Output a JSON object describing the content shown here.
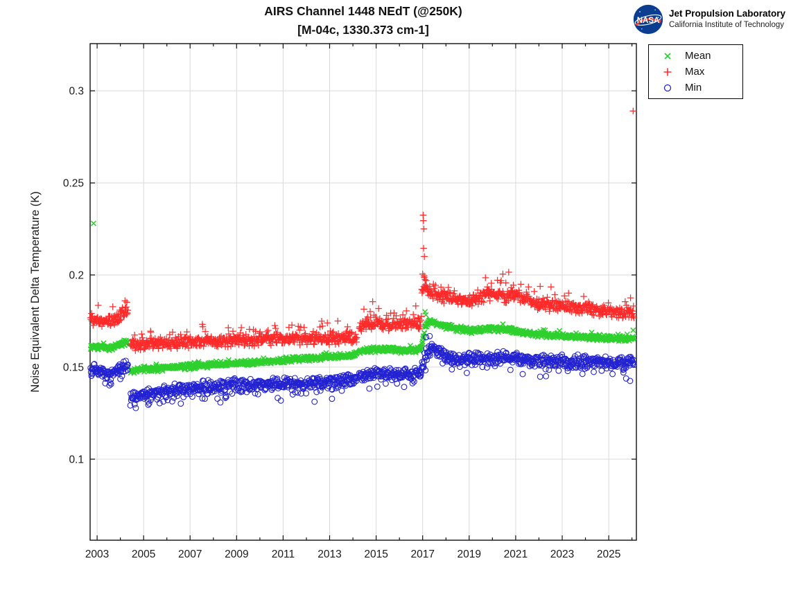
{
  "logo": {
    "agency": "NASA",
    "org": "Jet Propulsion Laboratory",
    "inst": "California Institute of Technology"
  },
  "legend": {
    "items": [
      {
        "label": "Mean",
        "marker": "x",
        "color": "#2ed02e"
      },
      {
        "label": "Max",
        "marker": "plus",
        "color": "#ff2a2a"
      },
      {
        "label": "Min",
        "marker": "circle",
        "color": "#2222d2"
      }
    ]
  },
  "chart_data": {
    "type": "scatter",
    "title": "AIRS Channel 1448 NEdT (@250K)",
    "subtitle": "[M-04c, 1330.373 cm-1]",
    "xlabel": "",
    "ylabel": "Noise Equivalent Delta Temperature (K)",
    "xlim": [
      2002.7,
      2026.19
    ],
    "ylim": [
      0.056,
      0.3256
    ],
    "xticks": [
      2003,
      2005,
      2007,
      2009,
      2011,
      2013,
      2015,
      2017,
      2019,
      2021,
      2023,
      2025
    ],
    "xminorticks": [
      2004,
      2006,
      2008,
      2010,
      2012,
      2014,
      2016,
      2018,
      2020,
      2022,
      2024,
      2026
    ],
    "yticks": [
      0.1,
      0.15,
      0.2,
      0.25,
      0.3
    ],
    "ytick_labels": [
      "0.1",
      "0.15",
      "0.2",
      "0.25",
      "0.3"
    ],
    "grid": true,
    "legend_position": "outside-top-right",
    "x_start": 2002.72,
    "x_end": 2026.1,
    "sample_step_years": 0.018,
    "seed": 7,
    "gaps": [
      [
        2004.33,
        2004.42
      ],
      [
        2014.17,
        2014.26
      ]
    ],
    "series": [
      {
        "name": "Mean",
        "marker": "x",
        "color": "#2ed02e",
        "noise": 0.0017,
        "tail": {
          "p": 0.03,
          "dir": 1,
          "lo": 0.001,
          "hi": 0.0025
        },
        "trend": [
          [
            2002.72,
            0.1613
          ],
          [
            2003.3,
            0.1602
          ],
          [
            2003.7,
            0.1606
          ],
          [
            2004.1,
            0.1628
          ],
          [
            2004.33,
            0.164
          ],
          [
            2004.42,
            0.1482
          ],
          [
            2006.0,
            0.1496
          ],
          [
            2008.0,
            0.1512
          ],
          [
            2010.0,
            0.1528
          ],
          [
            2012.0,
            0.1547
          ],
          [
            2014.17,
            0.1568
          ],
          [
            2014.26,
            0.1588
          ],
          [
            2015.0,
            0.1596
          ],
          [
            2016.0,
            0.1591
          ],
          [
            2016.92,
            0.1597
          ],
          [
            2017.0,
            0.1642
          ],
          [
            2017.12,
            0.1722
          ],
          [
            2017.28,
            0.1752
          ],
          [
            2017.5,
            0.1742
          ],
          [
            2017.9,
            0.1726
          ],
          [
            2018.5,
            0.1706
          ],
          [
            2019.2,
            0.1696
          ],
          [
            2019.95,
            0.1713
          ],
          [
            2020.4,
            0.1704
          ],
          [
            2020.95,
            0.17
          ],
          [
            2021.5,
            0.1684
          ],
          [
            2022.2,
            0.1676
          ],
          [
            2023.0,
            0.1669
          ],
          [
            2024.0,
            0.1662
          ],
          [
            2025.0,
            0.1657
          ],
          [
            2026.19,
            0.1652
          ]
        ],
        "outliers": [
          [
            2002.85,
            0.228
          ],
          [
            2017.1,
            0.18
          ],
          [
            2017.14,
            0.1783
          ],
          [
            2026.05,
            0.17
          ]
        ]
      },
      {
        "name": "Max",
        "marker": "plus",
        "color": "#ff2a2a",
        "noise": 0.0038,
        "tail": {
          "p": 0.1,
          "dir": 1,
          "lo": 0.002,
          "hi": 0.0075
        },
        "trend": [
          [
            2002.72,
            0.1765
          ],
          [
            2003.1,
            0.1752
          ],
          [
            2003.5,
            0.1745
          ],
          [
            2003.8,
            0.176
          ],
          [
            2004.05,
            0.1788
          ],
          [
            2004.33,
            0.1808
          ],
          [
            2004.42,
            0.1618
          ],
          [
            2005.5,
            0.1628
          ],
          [
            2007.0,
            0.1638
          ],
          [
            2009.0,
            0.1645
          ],
          [
            2011.0,
            0.1652
          ],
          [
            2013.0,
            0.1658
          ],
          [
            2014.17,
            0.1663
          ],
          [
            2014.26,
            0.1722
          ],
          [
            2014.9,
            0.1738
          ],
          [
            2015.5,
            0.173
          ],
          [
            2016.92,
            0.1738
          ],
          [
            2016.97,
            0.189
          ],
          [
            2017.05,
            0.196
          ],
          [
            2017.18,
            0.193
          ],
          [
            2017.35,
            0.1905
          ],
          [
            2017.6,
            0.1895
          ],
          [
            2018.2,
            0.1872
          ],
          [
            2019.0,
            0.1856
          ],
          [
            2019.65,
            0.1878
          ],
          [
            2019.95,
            0.1902
          ],
          [
            2020.3,
            0.1888
          ],
          [
            2020.6,
            0.1878
          ],
          [
            2020.95,
            0.1898
          ],
          [
            2021.3,
            0.1872
          ],
          [
            2022.0,
            0.1845
          ],
          [
            2023.0,
            0.1828
          ],
          [
            2024.0,
            0.1818
          ],
          [
            2025.0,
            0.1802
          ],
          [
            2026.19,
            0.179
          ]
        ],
        "outliers": [
          [
            2003.05,
            0.1835
          ],
          [
            2004.2,
            0.186
          ],
          [
            2004.28,
            0.1852
          ],
          [
            2005.3,
            0.1695
          ],
          [
            2009.55,
            0.1705
          ],
          [
            2011.25,
            0.1715
          ],
          [
            2012.9,
            0.174
          ],
          [
            2013.35,
            0.175
          ],
          [
            2014.85,
            0.1855
          ],
          [
            2016.3,
            0.1805
          ],
          [
            2017.02,
            0.2325
          ],
          [
            2017.03,
            0.2295
          ],
          [
            2017.05,
            0.225
          ],
          [
            2017.04,
            0.2145
          ],
          [
            2017.07,
            0.21
          ],
          [
            2017.0,
            0.2005
          ],
          [
            2017.06,
            0.1995
          ],
          [
            2017.1,
            0.1975
          ],
          [
            2019.7,
            0.1985
          ],
          [
            2019.95,
            0.1955
          ],
          [
            2020.45,
            0.2005
          ],
          [
            2020.7,
            0.2015
          ],
          [
            2020.9,
            0.1945
          ],
          [
            2026.05,
            0.289
          ]
        ]
      },
      {
        "name": "Min",
        "marker": "circle",
        "color": "#2222d2",
        "noise": 0.004,
        "tail": {
          "p": 0.1,
          "dir": -1,
          "lo": 0.002,
          "hi": 0.0062
        },
        "trend": [
          [
            2002.72,
            0.149
          ],
          [
            2003.05,
            0.1482
          ],
          [
            2003.35,
            0.1462
          ],
          [
            2003.65,
            0.1466
          ],
          [
            2003.95,
            0.1492
          ],
          [
            2004.2,
            0.1506
          ],
          [
            2004.33,
            0.1504
          ],
          [
            2004.42,
            0.1336
          ],
          [
            2005.2,
            0.1356
          ],
          [
            2006.2,
            0.1375
          ],
          [
            2008.0,
            0.1394
          ],
          [
            2010.0,
            0.1406
          ],
          [
            2012.0,
            0.1416
          ],
          [
            2014.17,
            0.1432
          ],
          [
            2014.26,
            0.1458
          ],
          [
            2015.0,
            0.1466
          ],
          [
            2016.0,
            0.1457
          ],
          [
            2016.92,
            0.1464
          ],
          [
            2017.02,
            0.1528
          ],
          [
            2017.15,
            0.1572
          ],
          [
            2017.35,
            0.1596
          ],
          [
            2017.6,
            0.1602
          ],
          [
            2017.85,
            0.1574
          ],
          [
            2018.15,
            0.1548
          ],
          [
            2018.7,
            0.1543
          ],
          [
            2019.3,
            0.1549
          ],
          [
            2019.8,
            0.154
          ],
          [
            2020.3,
            0.1549
          ],
          [
            2020.8,
            0.1554
          ],
          [
            2021.3,
            0.154
          ],
          [
            2022.0,
            0.1537
          ],
          [
            2023.0,
            0.1532
          ],
          [
            2024.0,
            0.1529
          ],
          [
            2025.0,
            0.1527
          ],
          [
            2026.19,
            0.1523
          ]
        ],
        "outliers": [
          [
            2003.35,
            0.1412
          ],
          [
            2003.6,
            0.1408
          ],
          [
            2004.0,
            0.1435
          ],
          [
            2005.2,
            0.1295
          ],
          [
            2006.6,
            0.1302
          ],
          [
            2008.3,
            0.1308
          ],
          [
            2010.9,
            0.1318
          ],
          [
            2012.35,
            0.1312
          ],
          [
            2013.1,
            0.1328
          ],
          [
            2016.2,
            0.1392
          ],
          [
            2017.15,
            0.1662
          ],
          [
            2017.3,
            0.1668
          ],
          [
            2018.9,
            0.1468
          ],
          [
            2021.3,
            0.1462
          ],
          [
            2025.75,
            0.1438
          ],
          [
            2025.92,
            0.1425
          ]
        ]
      }
    ]
  }
}
